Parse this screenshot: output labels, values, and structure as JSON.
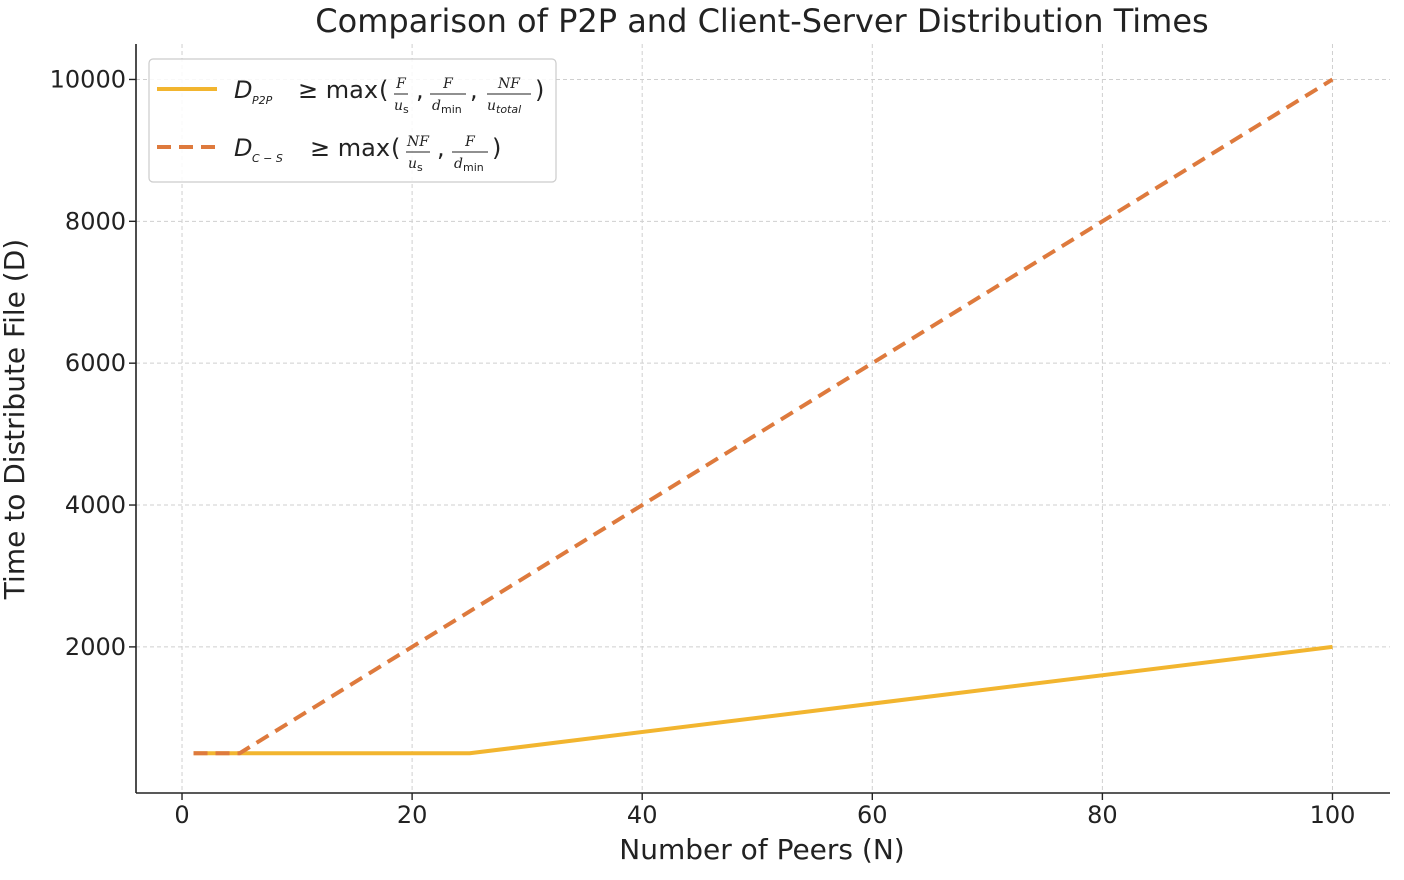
{
  "chart_data": {
    "type": "line",
    "title": "Comparison of P2P and Client-Server Distribution Times",
    "xlabel": "Number of Peers (N)",
    "ylabel": "Time to Distribute File (D)",
    "xlim": [
      -4,
      105
    ],
    "ylim": [
      -60,
      10500
    ],
    "xticks": [
      0,
      20,
      40,
      60,
      80,
      100
    ],
    "yticks": [
      2000,
      4000,
      6000,
      8000,
      10000
    ],
    "grid": true,
    "legend_position": "top-left",
    "series": [
      {
        "name": "D_P2P ≥ max(F/u_s, F/d_min, NF/u_total)",
        "color": "#f2b52f",
        "style": "solid",
        "x": [
          1,
          25,
          100
        ],
        "y": [
          500,
          500,
          2000
        ]
      },
      {
        "name": "D_C-S ≥ max(NF/u_s, F/d_min)",
        "color": "#de7a3d",
        "style": "dashed",
        "x": [
          1,
          5,
          100
        ],
        "y": [
          500,
          500,
          10000
        ]
      }
    ]
  }
}
